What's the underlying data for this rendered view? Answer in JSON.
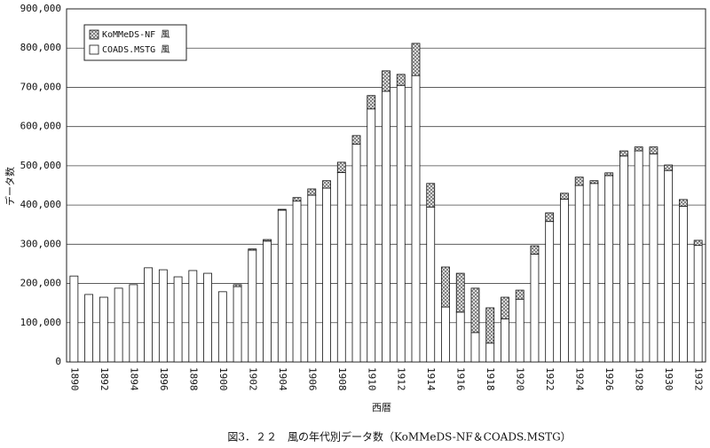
{
  "chart_data": {
    "type": "bar",
    "stacked": true,
    "caption": "図3．２２　風の年代別データ数（KoMMeDS-NF＆COADS.MSTG）",
    "x_label": "西暦",
    "y_label": "データ数",
    "categories": [
      "1890",
      null,
      "1892",
      null,
      "1894",
      null,
      "1896",
      null,
      "1898",
      null,
      "1900",
      null,
      "1902",
      null,
      "1904",
      null,
      "1906",
      null,
      "1908",
      null,
      "1910",
      null,
      "1912",
      null,
      "1914",
      null,
      "1916",
      null,
      "1918",
      null,
      "1920",
      null,
      "1922",
      null,
      "1924",
      null,
      "1926",
      null,
      "1928",
      null,
      "1930",
      null,
      "1932"
    ],
    "series": [
      {
        "name": "KoMMeDS-NF 風",
        "color": "#777777",
        "hatch": true,
        "values": [
          0,
          0,
          0,
          0,
          0,
          0,
          0,
          0,
          0,
          0,
          0,
          5000,
          3000,
          4000,
          2000,
          9000,
          16000,
          19000,
          26000,
          22000,
          34000,
          52000,
          28000,
          82000,
          60000,
          102000,
          99000,
          113000,
          90000,
          55000,
          23000,
          21000,
          22000,
          15000,
          21000,
          7000,
          7000,
          13000,
          10000,
          18000,
          14000,
          17000,
          13000
        ]
      },
      {
        "name": "COADS.MSTG 風",
        "color": "#ffffff",
        "hatch": false,
        "values": [
          219000,
          172000,
          165000,
          188000,
          197000,
          240000,
          235000,
          217000,
          233000,
          226000,
          179000,
          192000,
          285000,
          308000,
          387000,
          410000,
          425000,
          443000,
          483000,
          555000,
          645000,
          690000,
          705000,
          730000,
          395000,
          140000,
          127000,
          75000,
          48000,
          110000,
          160000,
          275000,
          358000,
          415000,
          450000,
          455000,
          475000,
          525000,
          538000,
          530000,
          488000,
          397000,
          297000
        ]
      }
    ],
    "ylim": [
      0,
      900000
    ],
    "yticks": [
      0,
      {
        "value": 100000,
        "label": "100,000"
      },
      {
        "value": 200000,
        "label": "200,000"
      },
      {
        "value": 300000,
        "label": "300,000"
      },
      {
        "value": 400000,
        "label": "400,000"
      },
      {
        "value": 500000,
        "label": "500,000"
      },
      {
        "value": 600000,
        "label": "600,000"
      },
      {
        "value": 700000,
        "label": "700,000"
      },
      {
        "value": 800000,
        "label": "800,000"
      },
      {
        "value": 900000,
        "label": "900,000"
      }
    ],
    "grid": true,
    "legend": "top-left"
  }
}
